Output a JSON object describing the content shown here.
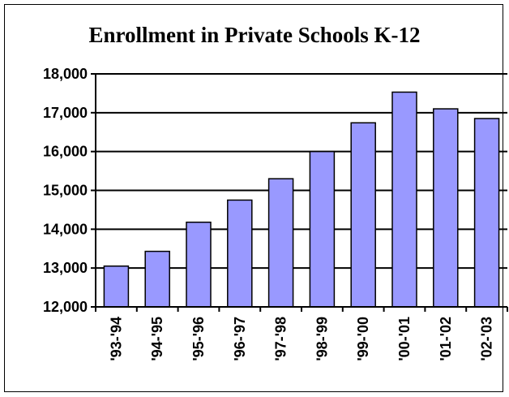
{
  "chart_data": {
    "type": "bar",
    "title": "Enrollment in Private Schools K-12",
    "categories": [
      "'93-'94",
      "'94-'95",
      "'95-'96",
      "'96-'97",
      "'97-'98",
      "'98-'99",
      "'99-'00",
      "'00-'01",
      "'01-'02",
      "'02-'03"
    ],
    "values": [
      13050,
      13430,
      14180,
      14750,
      15300,
      16000,
      16740,
      17530,
      17100,
      16850
    ],
    "ylim": [
      12000,
      18000
    ],
    "yticks": [
      12000,
      13000,
      14000,
      15000,
      16000,
      17000,
      18000
    ],
    "ytick_labels": [
      "12,000",
      "13,000",
      "14,000",
      "15,000",
      "16,000",
      "17,000",
      "18,000"
    ],
    "xlabel": "",
    "ylabel": "",
    "grid": "horizontal",
    "bar_color": "#9999ff",
    "bar_edge_color": "#000000"
  }
}
